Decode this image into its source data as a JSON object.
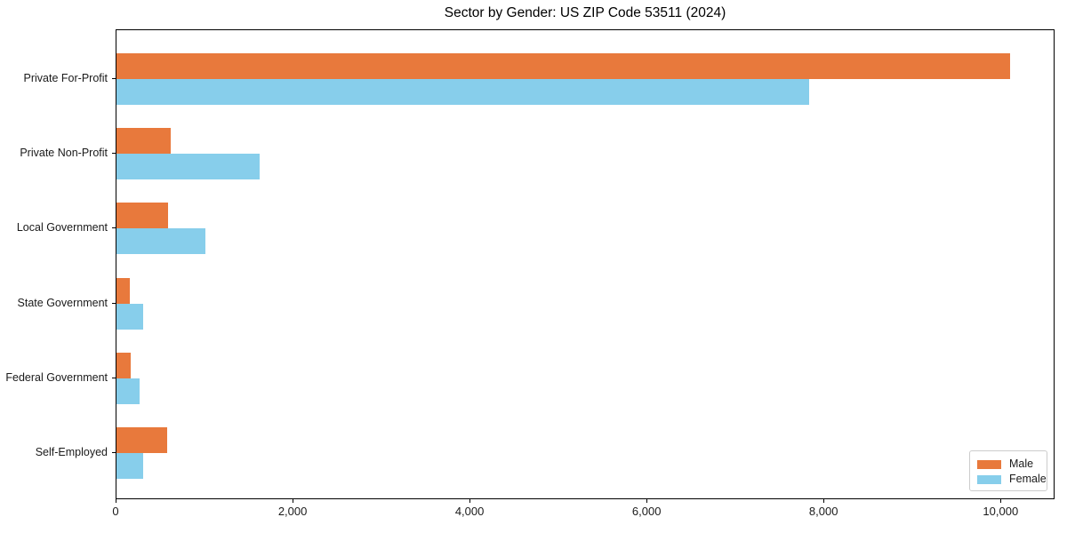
{
  "chart_data": {
    "type": "bar",
    "orientation": "horizontal",
    "title": "Sector by Gender: US ZIP Code 53511 (2024)",
    "categories": [
      "Private For-Profit",
      "Private Non-Profit",
      "Local Government",
      "State Government",
      "Federal Government",
      "Self-Employed"
    ],
    "series": [
      {
        "name": "Male",
        "color": "#e8793c",
        "values": [
          10100,
          610,
          580,
          150,
          160,
          570
        ]
      },
      {
        "name": "Female",
        "color": "#87ceeb",
        "values": [
          7830,
          1620,
          1000,
          300,
          260,
          300
        ]
      }
    ],
    "xlabel": "",
    "ylabel": "",
    "xlim": [
      0,
      10610
    ],
    "x_ticks": [
      0,
      2000,
      4000,
      6000,
      8000,
      10000
    ],
    "x_tick_labels": [
      "0",
      "2,000",
      "4,000",
      "6,000",
      "8,000",
      "10,000"
    ],
    "grid": false,
    "legend": {
      "position": "lower right",
      "entries": [
        "Male",
        "Female"
      ]
    },
    "colors": {
      "male": "#e8793c",
      "female": "#87ceeb",
      "spine": "#000000",
      "legend_border": "#cccccc"
    }
  }
}
